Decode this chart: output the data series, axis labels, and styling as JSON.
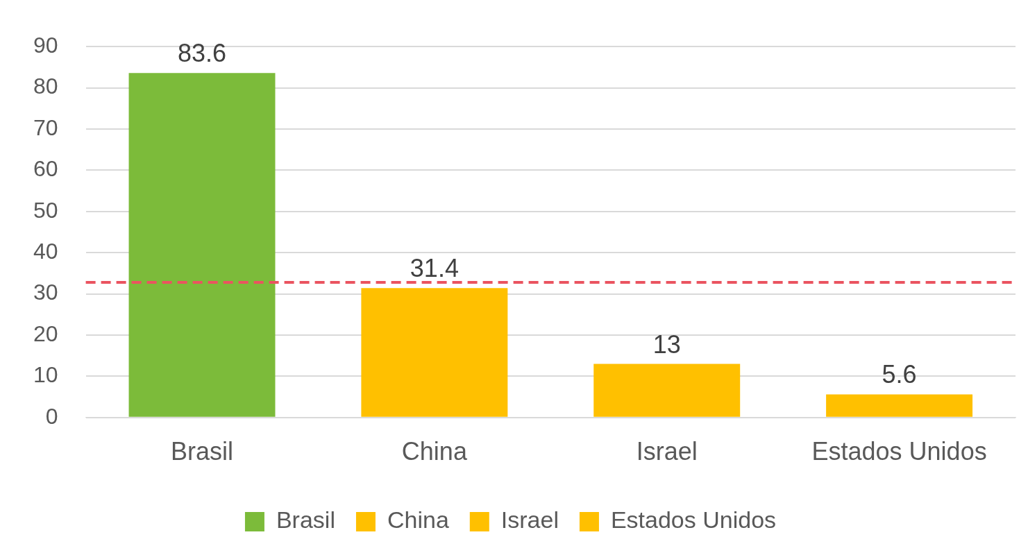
{
  "chart_data": {
    "type": "bar",
    "categories": [
      "Brasil",
      "China",
      "Israel",
      "Estados Unidos"
    ],
    "series": [
      {
        "name": "Brasil",
        "color": "#7cbb3a",
        "values": [
          83.6,
          null,
          null,
          null
        ]
      },
      {
        "name": "China",
        "color": "#ffc000",
        "values": [
          null,
          31.4,
          null,
          null
        ]
      },
      {
        "name": "Israel",
        "color": "#ffc000",
        "values": [
          null,
          null,
          13,
          null
        ]
      },
      {
        "name": "Estados Unidos",
        "color": "#ffc000",
        "values": [
          null,
          null,
          null,
          5.6
        ]
      }
    ],
    "ylim": [
      0,
      90
    ],
    "yticks": [
      0,
      10,
      20,
      30,
      40,
      50,
      60,
      70,
      80,
      90
    ],
    "grid": "y",
    "legend": "bottom",
    "data_labels": true,
    "ref_lines": [
      {
        "axis": "y",
        "value": 32.8,
        "color": "#ea5460",
        "line_style": "dashed"
      }
    ]
  }
}
